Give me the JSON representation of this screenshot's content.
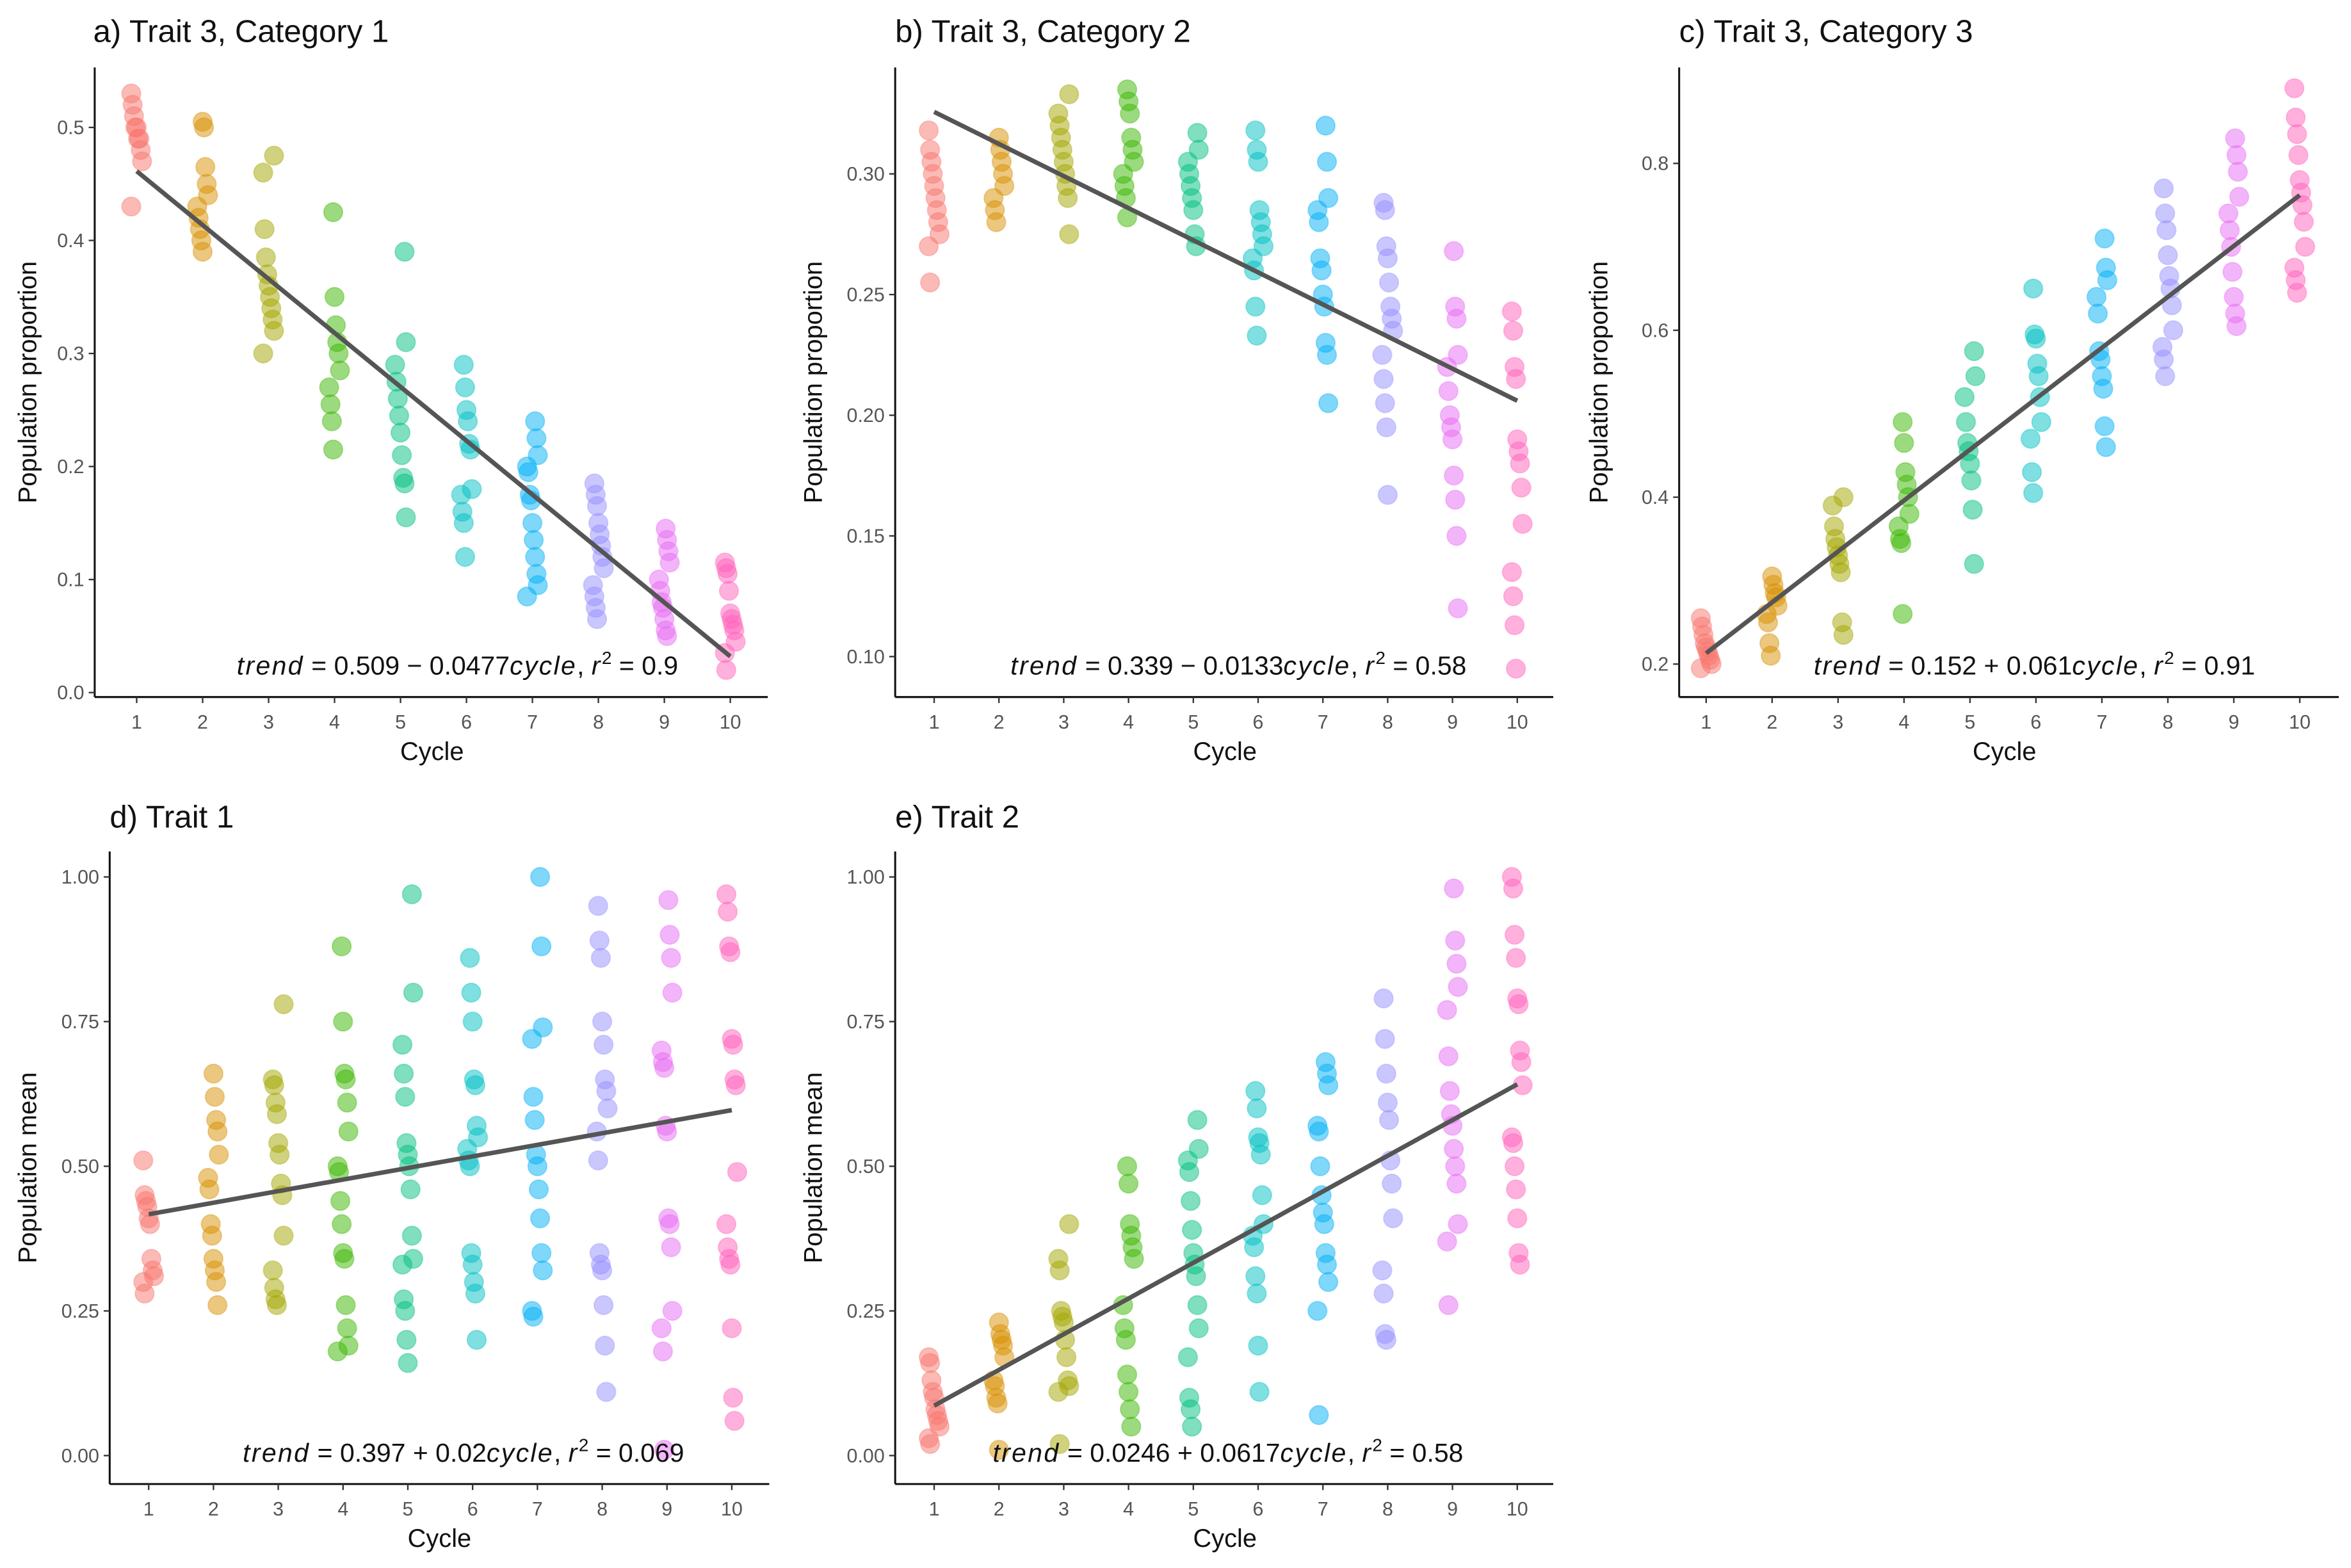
{
  "chart_data": [
    {
      "type": "scatter",
      "title": "a) Trait 3, Category 1",
      "xlabel": "Cycle",
      "ylabel": "Population proportion",
      "x_ticks": [
        "1",
        "2",
        "3",
        "4",
        "5",
        "6",
        "7",
        "8",
        "9",
        "10"
      ],
      "y_ticks": [
        0.0,
        0.1,
        0.2,
        0.3,
        0.4,
        0.5
      ],
      "y_tick_labels": [
        "0.0",
        "0.1",
        "0.2",
        "0.3",
        "0.4",
        "0.5"
      ],
      "trend": {
        "intercept": 0.509,
        "slope": -0.0477
      },
      "annotation": {
        "lhs": "trend",
        "eq": " = 0.509 − 0.0477",
        "var": "cycle",
        "sep": ",  ",
        "r": "r",
        "sup": "2",
        "r2": " = 0.9"
      },
      "points": [
        [
          0.53,
          0.52,
          0.51,
          0.5,
          0.5,
          0.49,
          0.49,
          0.48,
          0.47,
          0.43
        ],
        [
          0.505,
          0.5,
          0.465,
          0.45,
          0.44,
          0.43,
          0.42,
          0.41,
          0.4,
          0.39
        ],
        [
          0.475,
          0.46,
          0.41,
          0.385,
          0.37,
          0.36,
          0.35,
          0.34,
          0.33,
          0.32,
          0.3
        ],
        [
          0.425,
          0.35,
          0.325,
          0.31,
          0.3,
          0.285,
          0.27,
          0.255,
          0.24,
          0.215
        ],
        [
          0.39,
          0.31,
          0.29,
          0.275,
          0.26,
          0.245,
          0.23,
          0.21,
          0.19,
          0.185,
          0.155
        ],
        [
          0.29,
          0.27,
          0.25,
          0.24,
          0.22,
          0.215,
          0.18,
          0.175,
          0.16,
          0.15,
          0.12
        ],
        [
          0.24,
          0.225,
          0.21,
          0.2,
          0.195,
          0.175,
          0.17,
          0.15,
          0.135,
          0.12,
          0.105,
          0.095,
          0.085
        ],
        [
          0.185,
          0.175,
          0.165,
          0.15,
          0.14,
          0.13,
          0.12,
          0.11,
          0.095,
          0.085,
          0.075,
          0.065
        ],
        [
          0.145,
          0.135,
          0.125,
          0.115,
          0.1,
          0.09,
          0.08,
          0.075,
          0.065,
          0.055,
          0.05
        ],
        [
          0.115,
          0.11,
          0.105,
          0.09,
          0.07,
          0.065,
          0.06,
          0.055,
          0.045,
          0.035,
          0.02
        ]
      ]
    },
    {
      "type": "scatter",
      "title": "b) Trait 3, Category 2",
      "xlabel": "Cycle",
      "ylabel": "Population proportion",
      "x_ticks": [
        "1",
        "2",
        "3",
        "4",
        "5",
        "6",
        "7",
        "8",
        "9",
        "10"
      ],
      "y_ticks": [
        0.1,
        0.15,
        0.2,
        0.25,
        0.3
      ],
      "y_tick_labels": [
        "0.10",
        "0.15",
        "0.20",
        "0.25",
        "0.30"
      ],
      "trend": {
        "intercept": 0.339,
        "slope": -0.0133
      },
      "annotation": {
        "lhs": "trend",
        "eq": " = 0.339 − 0.0133",
        "var": "cycle",
        "sep": ",  ",
        "r": "r",
        "sup": "2",
        "r2": " = 0.58"
      },
      "points": [
        [
          0.318,
          0.31,
          0.305,
          0.3,
          0.295,
          0.29,
          0.285,
          0.28,
          0.275,
          0.27,
          0.255
        ],
        [
          0.315,
          0.31,
          0.305,
          0.3,
          0.295,
          0.29,
          0.285,
          0.28
        ],
        [
          0.333,
          0.325,
          0.32,
          0.315,
          0.31,
          0.305,
          0.3,
          0.295,
          0.29,
          0.275
        ],
        [
          0.335,
          0.33,
          0.325,
          0.315,
          0.31,
          0.305,
          0.3,
          0.295,
          0.29,
          0.282
        ],
        [
          0.317,
          0.31,
          0.305,
          0.3,
          0.295,
          0.29,
          0.285,
          0.275,
          0.27
        ],
        [
          0.318,
          0.31,
          0.305,
          0.285,
          0.28,
          0.275,
          0.27,
          0.265,
          0.26,
          0.245,
          0.233
        ],
        [
          0.32,
          0.305,
          0.29,
          0.285,
          0.28,
          0.265,
          0.26,
          0.25,
          0.245,
          0.23,
          0.225,
          0.205
        ],
        [
          0.288,
          0.285,
          0.27,
          0.265,
          0.255,
          0.245,
          0.24,
          0.235,
          0.225,
          0.215,
          0.205,
          0.195,
          0.167
        ],
        [
          0.268,
          0.245,
          0.24,
          0.225,
          0.22,
          0.21,
          0.2,
          0.195,
          0.19,
          0.175,
          0.165,
          0.15,
          0.12
        ],
        [
          0.243,
          0.235,
          0.22,
          0.215,
          0.19,
          0.185,
          0.18,
          0.17,
          0.155,
          0.135,
          0.125,
          0.113,
          0.095
        ]
      ]
    },
    {
      "type": "scatter",
      "title": "c) Trait 3, Category 3",
      "xlabel": "Cycle",
      "ylabel": "Population proportion",
      "x_ticks": [
        "1",
        "2",
        "3",
        "4",
        "5",
        "6",
        "7",
        "8",
        "9",
        "10"
      ],
      "y_ticks": [
        0.2,
        0.4,
        0.6,
        0.8
      ],
      "y_tick_labels": [
        "0.2",
        "0.4",
        "0.6",
        "0.8"
      ],
      "trend": {
        "intercept": 0.152,
        "slope": 0.061
      },
      "annotation": {
        "lhs": "trend",
        "eq": " = 0.152 + 0.061",
        "var": "cycle",
        "sep": ",  ",
        "r": "r",
        "sup": "2",
        "r2": " = 0.91"
      },
      "points": [
        [
          0.255,
          0.245,
          0.235,
          0.225,
          0.22,
          0.215,
          0.21,
          0.205,
          0.2,
          0.195
        ],
        [
          0.305,
          0.295,
          0.285,
          0.28,
          0.27,
          0.26,
          0.25,
          0.225,
          0.21
        ],
        [
          0.4,
          0.39,
          0.365,
          0.35,
          0.34,
          0.33,
          0.32,
          0.31,
          0.25,
          0.235
        ],
        [
          0.49,
          0.465,
          0.43,
          0.415,
          0.4,
          0.38,
          0.365,
          0.35,
          0.345,
          0.26
        ],
        [
          0.575,
          0.545,
          0.52,
          0.49,
          0.465,
          0.455,
          0.44,
          0.42,
          0.385,
          0.32
        ],
        [
          0.65,
          0.595,
          0.59,
          0.56,
          0.545,
          0.52,
          0.49,
          0.47,
          0.43,
          0.405
        ],
        [
          0.71,
          0.675,
          0.66,
          0.64,
          0.62,
          0.575,
          0.565,
          0.545,
          0.53,
          0.485,
          0.46
        ],
        [
          0.77,
          0.74,
          0.72,
          0.69,
          0.665,
          0.65,
          0.63,
          0.6,
          0.58,
          0.565,
          0.545
        ],
        [
          0.83,
          0.81,
          0.79,
          0.76,
          0.74,
          0.72,
          0.7,
          0.67,
          0.64,
          0.62,
          0.605
        ],
        [
          0.89,
          0.855,
          0.835,
          0.81,
          0.78,
          0.765,
          0.75,
          0.73,
          0.7,
          0.675,
          0.66,
          0.645
        ]
      ]
    },
    {
      "type": "scatter",
      "title": "d) Trait 1",
      "xlabel": "Cycle",
      "ylabel": "Population mean",
      "x_ticks": [
        "1",
        "2",
        "3",
        "4",
        "5",
        "6",
        "7",
        "8",
        "9",
        "10"
      ],
      "y_ticks": [
        0.0,
        0.25,
        0.5,
        0.75,
        1.0
      ],
      "y_tick_labels": [
        "0.00",
        "0.25",
        "0.50",
        "0.75",
        "1.00"
      ],
      "trend": {
        "intercept": 0.397,
        "slope": 0.02
      },
      "annotation": {
        "lhs": "trend",
        "eq": " = 0.397 + 0.02",
        "var": "cycle",
        "sep": ",  ",
        "r": "r",
        "sup": "2",
        "r2": " = 0.069"
      },
      "points": [
        [
          0.51,
          0.45,
          0.44,
          0.43,
          0.41,
          0.4,
          0.34,
          0.32,
          0.31,
          0.3,
          0.28
        ],
        [
          0.66,
          0.62,
          0.58,
          0.56,
          0.52,
          0.48,
          0.46,
          0.4,
          0.38,
          0.34,
          0.32,
          0.3,
          0.26
        ],
        [
          0.78,
          0.65,
          0.64,
          0.61,
          0.59,
          0.54,
          0.52,
          0.47,
          0.45,
          0.38,
          0.32,
          0.29,
          0.27,
          0.26
        ],
        [
          0.88,
          0.75,
          0.66,
          0.65,
          0.61,
          0.56,
          0.5,
          0.49,
          0.44,
          0.4,
          0.35,
          0.34,
          0.26,
          0.22,
          0.19,
          0.18
        ],
        [
          0.97,
          0.8,
          0.71,
          0.66,
          0.62,
          0.54,
          0.52,
          0.5,
          0.46,
          0.38,
          0.34,
          0.33,
          0.27,
          0.25,
          0.2,
          0.16
        ],
        [
          0.86,
          0.8,
          0.75,
          0.65,
          0.64,
          0.57,
          0.55,
          0.53,
          0.51,
          0.5,
          0.35,
          0.33,
          0.3,
          0.28,
          0.2
        ],
        [
          1.0,
          0.88,
          0.74,
          0.72,
          0.62,
          0.58,
          0.52,
          0.5,
          0.46,
          0.41,
          0.35,
          0.32,
          0.25,
          0.24
        ],
        [
          0.95,
          0.89,
          0.86,
          0.75,
          0.71,
          0.65,
          0.63,
          0.6,
          0.56,
          0.51,
          0.35,
          0.33,
          0.32,
          0.26,
          0.19,
          0.11
        ],
        [
          0.96,
          0.9,
          0.86,
          0.8,
          0.7,
          0.68,
          0.67,
          0.57,
          0.56,
          0.41,
          0.4,
          0.36,
          0.25,
          0.22,
          0.18,
          0.01
        ],
        [
          0.97,
          0.94,
          0.88,
          0.87,
          0.72,
          0.71,
          0.65,
          0.64,
          0.49,
          0.4,
          0.36,
          0.34,
          0.33,
          0.22,
          0.1,
          0.06
        ]
      ]
    },
    {
      "type": "scatter",
      "title": "e) Trait 2",
      "xlabel": "Cycle",
      "ylabel": "Population mean",
      "x_ticks": [
        "1",
        "2",
        "3",
        "4",
        "5",
        "6",
        "7",
        "8",
        "9",
        "10"
      ],
      "y_ticks": [
        0.0,
        0.25,
        0.5,
        0.75,
        1.0
      ],
      "y_tick_labels": [
        "0.00",
        "0.25",
        "0.50",
        "0.75",
        "1.00"
      ],
      "trend": {
        "intercept": 0.0246,
        "slope": 0.0617
      },
      "annotation": {
        "lhs": "trend",
        "eq": " = 0.0246 + 0.0617",
        "var": "cycle",
        "sep": ",  ",
        "r": "r",
        "sup": "2",
        "r2": " = 0.58"
      },
      "points": [
        [
          0.17,
          0.16,
          0.13,
          0.11,
          0.1,
          0.08,
          0.07,
          0.06,
          0.05,
          0.03,
          0.02
        ],
        [
          0.23,
          0.21,
          0.2,
          0.19,
          0.17,
          0.13,
          0.12,
          0.1,
          0.09,
          0.01
        ],
        [
          0.4,
          0.34,
          0.32,
          0.25,
          0.24,
          0.23,
          0.2,
          0.17,
          0.13,
          0.12,
          0.11,
          0.02
        ],
        [
          0.5,
          0.47,
          0.4,
          0.38,
          0.36,
          0.34,
          0.26,
          0.22,
          0.2,
          0.14,
          0.11,
          0.08,
          0.05
        ],
        [
          0.58,
          0.53,
          0.51,
          0.49,
          0.44,
          0.39,
          0.35,
          0.33,
          0.31,
          0.26,
          0.22,
          0.17,
          0.1,
          0.08,
          0.05
        ],
        [
          0.63,
          0.6,
          0.55,
          0.54,
          0.52,
          0.45,
          0.4,
          0.38,
          0.36,
          0.31,
          0.28,
          0.19,
          0.11
        ],
        [
          0.68,
          0.66,
          0.64,
          0.57,
          0.56,
          0.5,
          0.45,
          0.42,
          0.4,
          0.35,
          0.33,
          0.3,
          0.25,
          0.07
        ],
        [
          0.79,
          0.72,
          0.66,
          0.61,
          0.58,
          0.51,
          0.47,
          0.41,
          0.32,
          0.28,
          0.21,
          0.2
        ],
        [
          0.98,
          0.89,
          0.85,
          0.81,
          0.77,
          0.69,
          0.63,
          0.59,
          0.57,
          0.53,
          0.5,
          0.47,
          0.4,
          0.37,
          0.26
        ],
        [
          1.0,
          0.98,
          0.9,
          0.86,
          0.79,
          0.78,
          0.7,
          0.68,
          0.64,
          0.55,
          0.54,
          0.5,
          0.46,
          0.41,
          0.35,
          0.33
        ]
      ]
    }
  ],
  "colors": {
    "cycles": [
      "#F8766D",
      "#D89000",
      "#A3A500",
      "#39B600",
      "#00BF7D",
      "#00BFC4",
      "#00B0F6",
      "#9590FF",
      "#E76BF3",
      "#FF62BC"
    ],
    "trend_line": "#555555",
    "axis": "#111111"
  }
}
